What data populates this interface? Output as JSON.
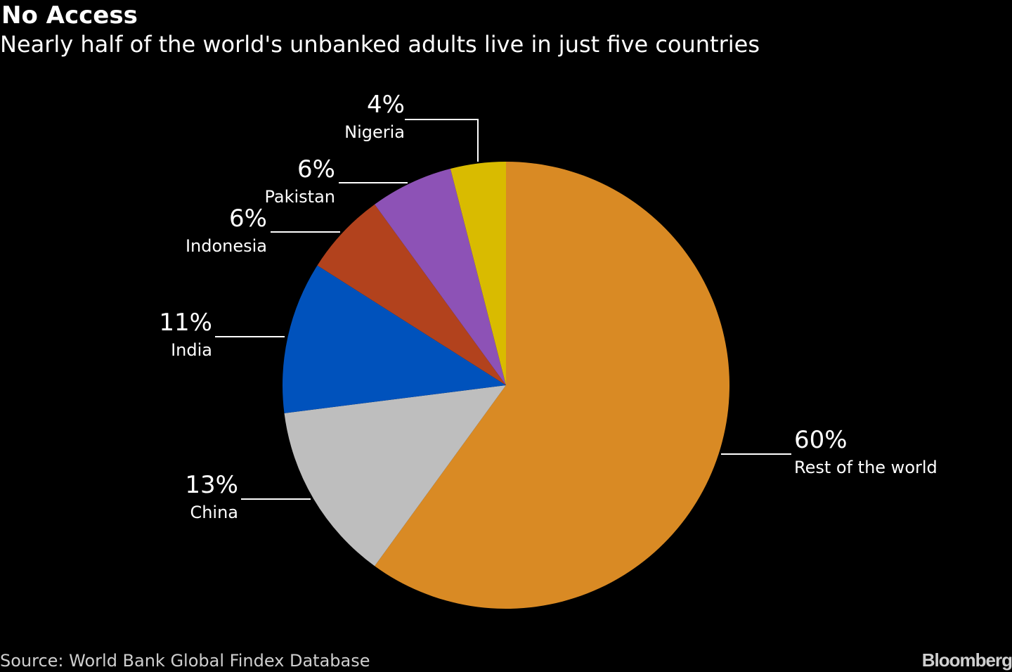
{
  "header": {
    "title": "No Access",
    "subtitle": "Nearly half of the world's unbanked adults live in just five countries"
  },
  "footer": {
    "source": "Source: World Bank Global Findex Database",
    "brand": "Bloomberg"
  },
  "chart_data": {
    "type": "pie",
    "title": "No Access",
    "subtitle": "Nearly half of the world's unbanked adults live in just five countries",
    "start_angle": "12 o'clock, clockwise",
    "slices": [
      {
        "label": "Rest of the world",
        "value": 60,
        "display": "60%",
        "color": "#D98A24"
      },
      {
        "label": "China",
        "value": 13,
        "display": "13%",
        "color": "#BEBEBE"
      },
      {
        "label": "India",
        "value": 11,
        "display": "11%",
        "color": "#0052BC"
      },
      {
        "label": "Indonesia",
        "value": 6,
        "display": "6%",
        "color": "#B2421D"
      },
      {
        "label": "Pakistan",
        "value": 6,
        "display": "6%",
        "color": "#8D52B6"
      },
      {
        "label": "Nigeria",
        "value": 4,
        "display": "4%",
        "color": "#D9BB00"
      }
    ],
    "source": "Source: World Bank Global Findex Database"
  }
}
